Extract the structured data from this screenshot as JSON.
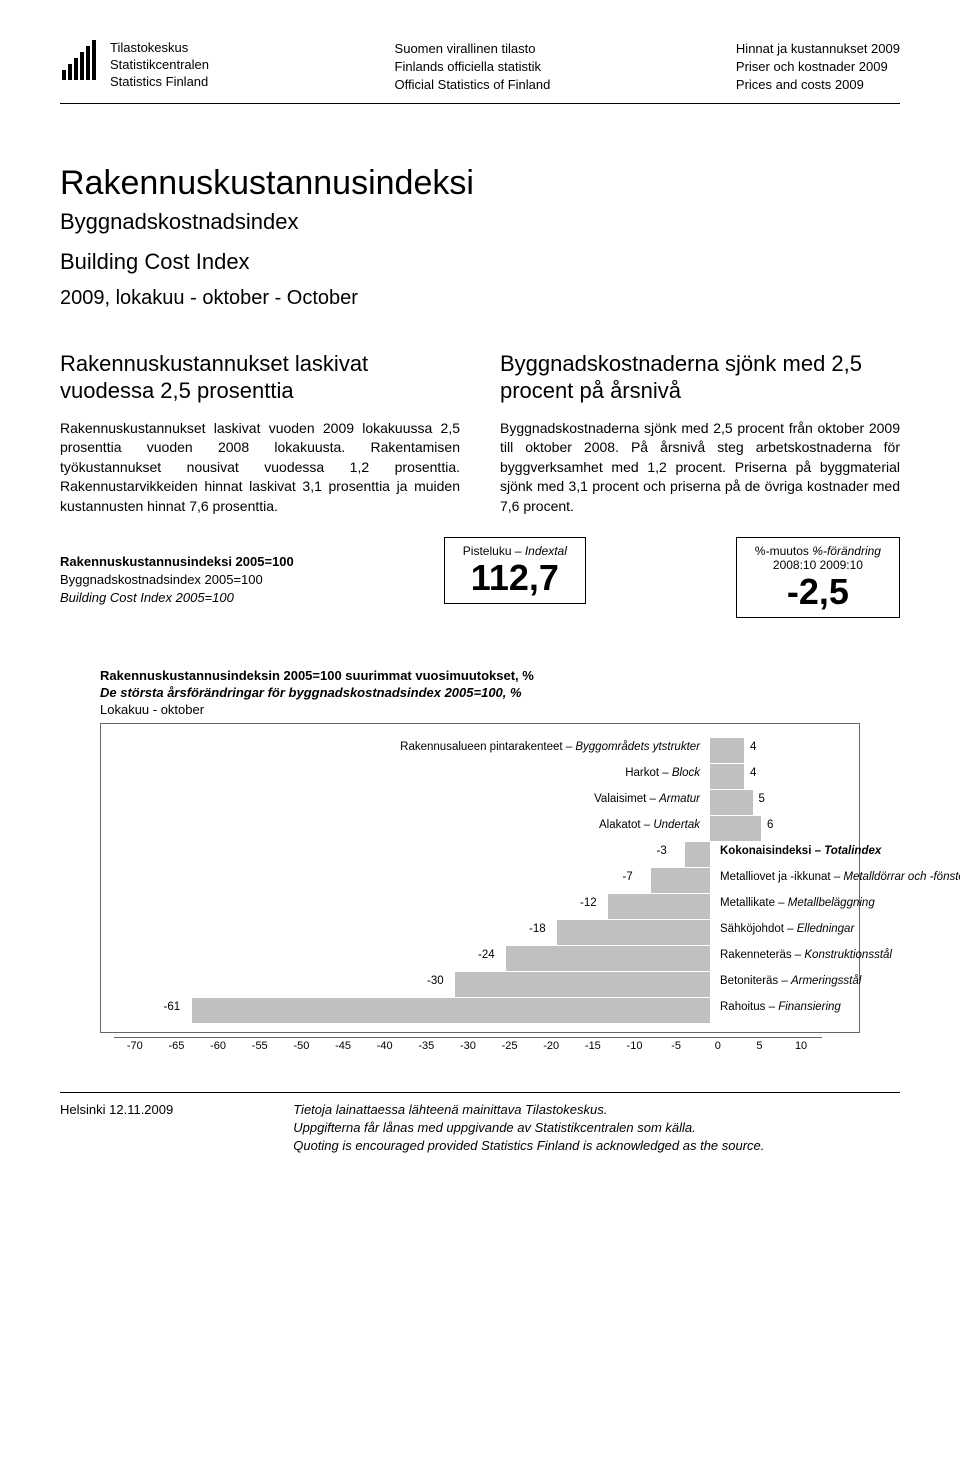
{
  "header": {
    "logo": {
      "fi": "Tilastokeskus",
      "sv": "Statistikcentralen",
      "en": "Statistics Finland"
    },
    "center": {
      "fi": "Suomen virallinen tilasto",
      "sv": "Finlands officiella statistik",
      "en": "Official Statistics of Finland"
    },
    "right": {
      "fi": "Hinnat ja kustannukset 2009",
      "sv": "Priser och kostnader 2009",
      "en": "Prices and costs 2009"
    }
  },
  "title": {
    "main": "Rakennuskustannusindeksi",
    "sub1": "Byggnadskostnadsindex",
    "sub2": "Building Cost Index",
    "period": "2009, lokakuu - oktober - October"
  },
  "columns": {
    "left": {
      "heading": "Rakennuskustannukset laskivat vuodessa 2,5 prosenttia",
      "body": "Rakennuskustannukset laskivat vuoden 2009 lokakuussa 2,5 prosenttia vuoden 2008 lokakuusta. Rakentamisen työkustannukset nousivat vuodessa 1,2 prosenttia. Rakennustarvikkeiden hinnat laskivat 3,1 prosenttia ja muiden kustannusten hinnat 7,6 prosenttia."
    },
    "right": {
      "heading": "Byggnadskostnaderna sjönk med 2,5 procent på årsnivå",
      "body": "Byggnadskostnaderna sjönk med 2,5 procent från oktober 2009 till oktober 2008. På årsnivå steg arbetskostnaderna för byggverksamhet med 1,2 procent. Priserna på byggmaterial sjönk med 3,1 procent och priserna på de övriga kostnader med 7,6 procent."
    }
  },
  "indexRow": {
    "labels": {
      "l1": "Rakennuskustannusindeksi 2005=100",
      "l2": "Byggnadskostnadsindex 2005=100",
      "l3": "Building Cost Index 2005=100"
    },
    "box1": {
      "label_fi": "Pisteluku",
      "label_sv": "Indextal",
      "value": "112,7"
    },
    "box2": {
      "label_fi": "%-muutos",
      "label_sv": "%-förändring",
      "sub": "2008:10  2009:10",
      "value": "-2,5"
    }
  },
  "chart": {
    "title_fi": "Rakennuskustannusindeksin 2005=100 suurimmat vuosimuutokset, %",
    "title_sv": "De största årsförändringar för byggnadskostnadsindex 2005=100, %",
    "subtitle": "Lokakuu - oktober",
    "type": "bar-horizontal",
    "xlim": [
      -70,
      10
    ],
    "xtick_step": 5,
    "xticks": [
      -70,
      -65,
      -60,
      -55,
      -50,
      -45,
      -40,
      -35,
      -30,
      -25,
      -20,
      -15,
      -10,
      -5,
      0,
      5,
      10
    ],
    "bar_color": "#c0c0c0",
    "background_color": "#ffffff",
    "border_color": "#666666",
    "label_fontsize": 11.5,
    "tick_fontsize": 11,
    "rows": [
      {
        "label_fi": "Rakennusalueen pintarakenteet",
        "label_sv": "Byggområdets ytstrukter",
        "value": 4,
        "bold": false
      },
      {
        "label_fi": "Harkot",
        "label_sv": "Block",
        "value": 4,
        "bold": false
      },
      {
        "label_fi": "Valaisimet",
        "label_sv": "Armatur",
        "value": 5,
        "bold": false
      },
      {
        "label_fi": "Alakatot",
        "label_sv": "Undertak",
        "value": 6,
        "bold": false
      },
      {
        "label_fi": "Kokonaisindeksi",
        "label_sv": "Totalindex",
        "value": -3,
        "bold": true
      },
      {
        "label_fi": "Metalliovet ja -ikkunat",
        "label_sv": "Metalldörrar och -fönster",
        "value": -7,
        "bold": false
      },
      {
        "label_fi": "Metallikate",
        "label_sv": "Metallbeläggning",
        "value": -12,
        "bold": false
      },
      {
        "label_fi": "Sähköjohdot",
        "label_sv": "Elledningar",
        "value": -18,
        "bold": false
      },
      {
        "label_fi": "Rakenneteräs",
        "label_sv": "Konstruktionsstål",
        "value": -24,
        "bold": false
      },
      {
        "label_fi": "Betoniteräs",
        "label_sv": "Armeringsstål",
        "value": -30,
        "bold": false
      },
      {
        "label_fi": "Rahoitus",
        "label_sv": "Finansiering",
        "value": -61,
        "bold": false
      }
    ]
  },
  "footer": {
    "left": "Helsinki 12.11.2009",
    "r1": "Tietoja lainattaessa lähteenä mainittava Tilastokeskus.",
    "r2": "Uppgifterna får lånas med uppgivande av Statistikcentralen som källa.",
    "r3": "Quoting is encouraged provided Statistics Finland is acknowledged as the source."
  }
}
